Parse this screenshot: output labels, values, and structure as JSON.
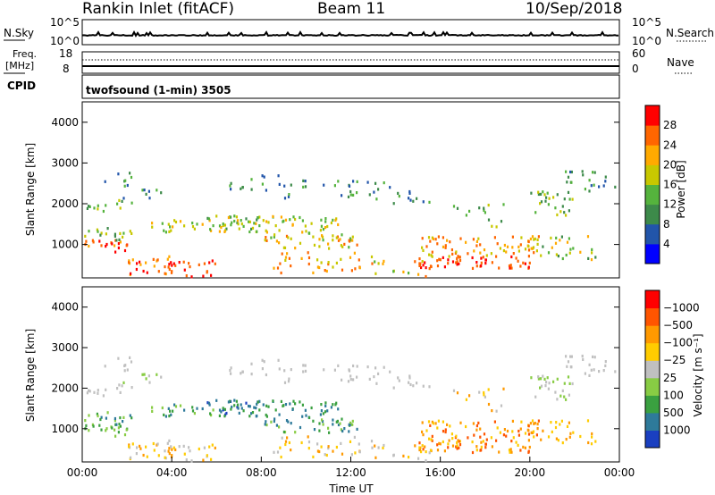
{
  "header": {
    "station": "Rankin Inlet (fitACF)",
    "beam": "Beam 11",
    "date": "10/Sep/2018"
  },
  "top_panels": {
    "nsky_label": "N.Sky",
    "nsearch_label": "N.Search",
    "nsky_tick_top": "10^5",
    "nsky_tick_bottom": "10^0",
    "nsearch_tick_top": "10^5",
    "nsearch_tick_bottom": "10^0",
    "freq_label_1": "Freq.",
    "freq_label_2": "[MHz]",
    "freq_tick_top": "18",
    "freq_tick_bottom": "8",
    "nave_label": "Nave",
    "nave_tick_top": "60",
    "nave_tick_bottom": "0",
    "cpid_label": "CPID",
    "cpid_text": "twofsound (1-min) 3505"
  },
  "chart_data": [
    {
      "type": "heatmap",
      "name": "power",
      "ylabel": "Slant Range [km]",
      "yticks": [
        1000,
        2000,
        3000,
        4000
      ],
      "ylim": [
        180,
        4500
      ],
      "xlim": [
        0,
        24
      ],
      "colorbar_label": "Power [dB]",
      "colorbar_ticks": [
        "4",
        "8",
        "12",
        "16",
        "20",
        "24",
        "28"
      ],
      "colors": [
        "#0000ff",
        "#2255aa",
        "#3d8a4a",
        "#55b33d",
        "#c8c800",
        "#ffaa00",
        "#ff6600",
        "#ff0000"
      ]
    },
    {
      "type": "heatmap",
      "name": "velocity",
      "ylabel": "Slant Range [km]",
      "yticks": [
        1000,
        2000,
        3000,
        4000
      ],
      "ylim": [
        180,
        4500
      ],
      "xlim": [
        0,
        24
      ],
      "xticks": [
        "00:00",
        "04:00",
        "08:00",
        "12:00",
        "16:00",
        "20:00",
        "00:00"
      ],
      "xlabel": "Time UT",
      "colorbar_label": "Velocity [m s⁻¹]",
      "colorbar_ticks": [
        "1000",
        "500",
        "100",
        "25",
        "−25",
        "−100",
        "−500",
        "−1000"
      ],
      "colors": [
        "#1a3fc0",
        "#2e7a9a",
        "#3aa040",
        "#88cc44",
        "#c0c0c0",
        "#ffcc00",
        "#ff9900",
        "#ff5500",
        "#ff0000"
      ]
    }
  ]
}
